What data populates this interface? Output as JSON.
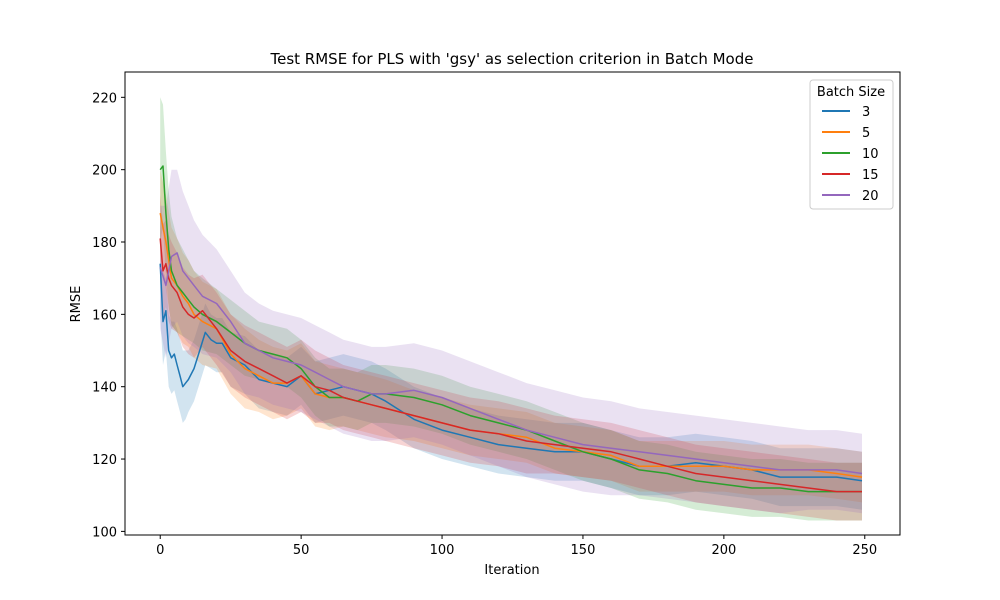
{
  "chart_data": {
    "type": "line",
    "title": "Test RMSE for PLS with 'gsy' as selection criterion in Batch Mode",
    "xlabel": "Iteration",
    "ylabel": "RMSE",
    "xlim": [
      -12.5,
      262.5
    ],
    "ylim": [
      99,
      227
    ],
    "xticks": [
      0,
      50,
      100,
      150,
      200,
      250
    ],
    "yticks": [
      100,
      120,
      140,
      160,
      180,
      200,
      220
    ],
    "grid": false,
    "legend": {
      "title": "Batch Size",
      "placement": "top-right"
    },
    "series": [
      {
        "name": "3",
        "color": "#1f77b4",
        "x": [
          0,
          1,
          2,
          3,
          4,
          5,
          6,
          7,
          8,
          9,
          10,
          12,
          14,
          16,
          18,
          20,
          22,
          25,
          30,
          35,
          40,
          45,
          50,
          55,
          60,
          65,
          70,
          75,
          80,
          90,
          100,
          110,
          120,
          130,
          140,
          150,
          160,
          170,
          180,
          190,
          200,
          210,
          220,
          230,
          240,
          249
        ],
        "values": [
          174,
          158,
          161,
          150,
          148,
          149,
          146,
          143,
          140,
          141,
          142,
          145,
          150,
          155,
          153,
          152,
          152,
          148,
          146,
          142,
          141,
          140,
          143,
          138,
          139,
          140,
          139,
          138,
          136,
          131,
          128,
          126,
          124,
          123,
          122,
          122,
          120,
          118,
          118,
          119,
          118,
          117,
          115,
          115,
          115,
          114
        ],
        "upper": [
          186,
          172,
          170,
          160,
          158,
          158,
          156,
          153,
          150,
          150,
          150,
          153,
          158,
          163,
          160,
          159,
          159,
          155,
          154,
          150,
          149,
          148,
          151,
          147,
          148,
          149,
          148,
          147,
          145,
          140,
          137,
          134,
          132,
          131,
          130,
          130,
          128,
          126,
          126,
          127,
          126,
          125,
          123,
          123,
          123,
          122
        ],
        "lower": [
          160,
          146,
          150,
          140,
          138,
          139,
          136,
          133,
          130,
          131,
          133,
          136,
          141,
          146,
          145,
          144,
          144,
          140,
          138,
          134,
          133,
          132,
          135,
          130,
          131,
          132,
          131,
          130,
          128,
          123,
          120,
          118,
          116,
          115,
          114,
          114,
          112,
          110,
          110,
          111,
          110,
          109,
          107,
          107,
          107,
          106
        ]
      },
      {
        "name": "5",
        "color": "#ff7f0e",
        "x": [
          0,
          2,
          4,
          6,
          8,
          10,
          12,
          15,
          20,
          25,
          30,
          35,
          40,
          45,
          50,
          55,
          60,
          65,
          70,
          75,
          80,
          90,
          100,
          110,
          120,
          130,
          140,
          150,
          160,
          170,
          180,
          190,
          200,
          210,
          220,
          230,
          240,
          249
        ],
        "values": [
          188,
          180,
          170,
          168,
          165,
          163,
          160,
          158,
          156,
          149,
          145,
          143,
          141,
          141,
          143,
          138,
          137,
          137,
          136,
          135,
          134,
          132,
          130,
          128,
          127,
          126,
          123,
          122,
          121,
          118,
          118,
          118,
          118,
          117,
          117,
          117,
          116,
          115
        ],
        "upper": [
          200,
          193,
          184,
          181,
          177,
          175,
          172,
          169,
          167,
          160,
          156,
          153,
          151,
          150,
          152,
          147,
          146,
          145,
          144,
          143,
          142,
          139,
          137,
          135,
          134,
          133,
          130,
          129,
          128,
          125,
          125,
          125,
          125,
          124,
          124,
          124,
          123,
          122
        ],
        "lower": [
          176,
          167,
          157,
          155,
          152,
          151,
          148,
          146,
          145,
          138,
          134,
          133,
          131,
          132,
          134,
          129,
          128,
          129,
          128,
          127,
          126,
          125,
          123,
          121,
          120,
          119,
          116,
          115,
          114,
          111,
          111,
          111,
          111,
          110,
          110,
          110,
          109,
          108
        ]
      },
      {
        "name": "10",
        "color": "#2ca02c",
        "x": [
          0,
          1,
          2,
          3,
          4,
          6,
          8,
          10,
          12,
          15,
          20,
          25,
          30,
          35,
          40,
          45,
          50,
          55,
          60,
          65,
          70,
          75,
          80,
          90,
          100,
          110,
          120,
          130,
          140,
          150,
          160,
          170,
          180,
          190,
          200,
          210,
          220,
          230,
          240,
          249
        ],
        "values": [
          200,
          201,
          188,
          178,
          172,
          168,
          166,
          164,
          162,
          160,
          158,
          155,
          152,
          150,
          149,
          148,
          145,
          140,
          137,
          137,
          136,
          138,
          138,
          137,
          135,
          132,
          130,
          128,
          125,
          122,
          120,
          117,
          116,
          114,
          113,
          112,
          112,
          111,
          111,
          111
        ],
        "upper": [
          220,
          218,
          205,
          194,
          187,
          181,
          178,
          175,
          172,
          170,
          167,
          164,
          161,
          158,
          157,
          156,
          153,
          148,
          145,
          145,
          144,
          146,
          146,
          145,
          143,
          140,
          138,
          136,
          133,
          130,
          128,
          125,
          124,
          122,
          121,
          120,
          120,
          119,
          119,
          119
        ],
        "lower": [
          180,
          184,
          171,
          162,
          157,
          155,
          154,
          153,
          152,
          150,
          149,
          146,
          143,
          142,
          141,
          140,
          137,
          132,
          129,
          129,
          128,
          130,
          130,
          129,
          127,
          124,
          122,
          120,
          117,
          114,
          112,
          109,
          108,
          106,
          105,
          104,
          104,
          103,
          103,
          103
        ]
      },
      {
        "name": "15",
        "color": "#d62728",
        "x": [
          0,
          1,
          2,
          3,
          4,
          6,
          8,
          10,
          12,
          15,
          20,
          25,
          30,
          35,
          40,
          45,
          50,
          55,
          60,
          65,
          70,
          75,
          80,
          90,
          100,
          110,
          120,
          130,
          140,
          150,
          160,
          170,
          180,
          190,
          200,
          210,
          220,
          230,
          240,
          249
        ],
        "values": [
          181,
          172,
          174,
          170,
          168,
          166,
          162,
          160,
          159,
          161,
          156,
          150,
          147,
          145,
          143,
          141,
          143,
          140,
          139,
          137,
          136,
          135,
          134,
          132,
          130,
          128,
          127,
          125,
          124,
          123,
          122,
          120,
          118,
          116,
          115,
          114,
          113,
          112,
          111,
          111
        ],
        "upper": [
          193,
          185,
          186,
          182,
          180,
          177,
          173,
          171,
          170,
          171,
          166,
          160,
          157,
          155,
          153,
          151,
          153,
          150,
          148,
          146,
          145,
          144,
          143,
          141,
          139,
          137,
          136,
          134,
          132,
          131,
          130,
          128,
          126,
          124,
          123,
          122,
          121,
          120,
          119,
          119
        ],
        "lower": [
          169,
          159,
          162,
          158,
          156,
          155,
          151,
          149,
          148,
          151,
          146,
          140,
          137,
          135,
          133,
          131,
          133,
          130,
          130,
          128,
          127,
          126,
          125,
          123,
          121,
          119,
          118,
          116,
          116,
          115,
          114,
          112,
          110,
          108,
          107,
          106,
          105,
          104,
          103,
          103
        ]
      },
      {
        "name": "20",
        "color": "#9467bd",
        "x": [
          0,
          2,
          4,
          6,
          8,
          10,
          12,
          15,
          20,
          25,
          30,
          35,
          40,
          45,
          50,
          55,
          60,
          65,
          70,
          75,
          80,
          90,
          100,
          110,
          120,
          130,
          140,
          150,
          160,
          170,
          180,
          190,
          200,
          210,
          220,
          230,
          240,
          249
        ],
        "values": [
          173,
          168,
          176,
          177,
          172,
          170,
          168,
          165,
          163,
          158,
          152,
          150,
          148,
          147,
          146,
          144,
          142,
          140,
          139,
          138,
          138,
          139,
          137,
          134,
          131,
          128,
          126,
          124,
          123,
          122,
          121,
          120,
          119,
          118,
          117,
          117,
          117,
          116
        ],
        "upper": [
          190,
          190,
          200,
          200,
          194,
          190,
          186,
          182,
          178,
          172,
          166,
          163,
          161,
          160,
          159,
          157,
          155,
          153,
          152,
          151,
          151,
          152,
          150,
          147,
          144,
          141,
          139,
          137,
          136,
          134,
          133,
          132,
          131,
          130,
          129,
          128,
          128,
          127
        ],
        "lower": [
          156,
          148,
          156,
          158,
          154,
          152,
          151,
          149,
          148,
          144,
          138,
          137,
          135,
          134,
          133,
          131,
          129,
          127,
          126,
          125,
          125,
          126,
          124,
          121,
          118,
          115,
          113,
          111,
          110,
          110,
          109,
          108,
          107,
          106,
          105,
          106,
          106,
          105
        ]
      }
    ]
  }
}
